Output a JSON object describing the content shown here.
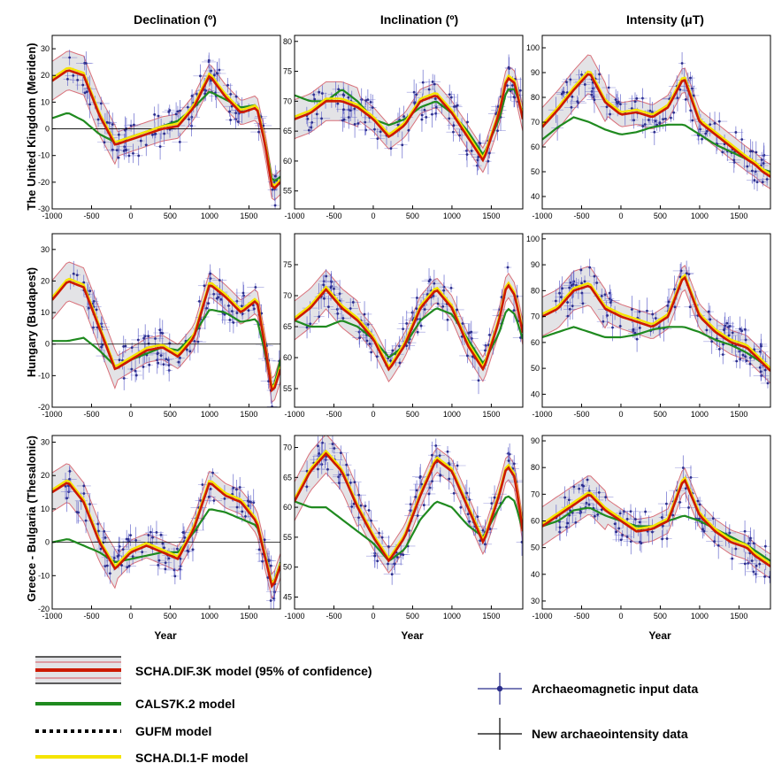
{
  "colors": {
    "model_red": "#cc1a00",
    "band_outline": "#d9707a",
    "band_fill": "#e3e3e6",
    "cals7k": "#1f8a1f",
    "gufm": "#000000",
    "schadi1f": "#f5e400",
    "data": "#2b2e8c",
    "data_bar": "#5a5cc8"
  },
  "column_titles": [
    "Declination (º)",
    "Inclination (º)",
    "Intensity (μT)"
  ],
  "row_labels": [
    "The United Kingdom (Meriden)",
    "Hungary (Budapest)",
    "Greece - Bulgaria (Thesalonic)"
  ],
  "x_axis_label": "Year",
  "legend": {
    "schadif3k": "SCHA.DIF.3K model (95% of confidence)",
    "cals7k2": "CALS7K.2 model",
    "gufm": "GUFM model",
    "schadi1f": "SCHA.DI.1-F model",
    "archaeomag": "Archaeomagnetic input data",
    "new_intensity": "New archaeointensity data"
  },
  "chart_data": [
    {
      "type": "line",
      "panel": "uk-declination",
      "xlabel": "",
      "ylabel": "",
      "xlim": [
        -1000,
        1900
      ],
      "ylim": [
        -30,
        35
      ],
      "xticks": [
        -1000,
        -500,
        0,
        500,
        1000,
        1500
      ],
      "yticks": [
        -30,
        -20,
        -10,
        0,
        10,
        20,
        30
      ],
      "zero_line": true,
      "x": [
        -1000,
        -800,
        -600,
        -400,
        -200,
        0,
        200,
        400,
        600,
        800,
        1000,
        1200,
        1400,
        1600,
        1700,
        1800,
        1900
      ],
      "series": [
        {
          "values": [
            18,
            22,
            20,
            5,
            -6,
            -4,
            -2,
            0,
            1,
            8,
            20,
            12,
            6,
            8,
            -5,
            -23,
            -20
          ]
        },
        {
          "values": [
            4,
            6,
            3,
            -2,
            -5,
            -3,
            -1,
            1,
            3,
            8,
            14,
            11,
            8,
            9,
            -4,
            -20,
            -18
          ]
        }
      ]
    },
    {
      "type": "line",
      "panel": "uk-inclination",
      "xlabel": "",
      "ylabel": "",
      "xlim": [
        -1000,
        1900
      ],
      "ylim": [
        52,
        81
      ],
      "xticks": [
        -1000,
        -500,
        0,
        500,
        1000,
        1500
      ],
      "yticks": [
        55,
        60,
        65,
        70,
        75,
        80
      ],
      "x": [
        -1000,
        -800,
        -600,
        -400,
        -200,
        0,
        200,
        400,
        600,
        800,
        1000,
        1200,
        1400,
        1600,
        1700,
        1800,
        1900
      ],
      "series": [
        {
          "values": [
            67,
            68,
            70,
            70,
            69,
            67,
            64,
            66,
            70,
            71,
            68,
            64,
            60,
            68,
            74,
            73,
            67
          ]
        },
        {
          "values": [
            71,
            70,
            70,
            72,
            70,
            67,
            66,
            67,
            69,
            70,
            68,
            65,
            61,
            67,
            72,
            72,
            68
          ]
        }
      ]
    },
    {
      "type": "line",
      "panel": "uk-intensity",
      "xlabel": "",
      "ylabel": "",
      "xlim": [
        -1000,
        1900
      ],
      "ylim": [
        35,
        105
      ],
      "xticks": [
        -1000,
        -500,
        0,
        500,
        1000,
        1500
      ],
      "yticks": [
        40,
        50,
        60,
        70,
        80,
        90,
        100
      ],
      "x": [
        -1000,
        -800,
        -600,
        -400,
        -200,
        0,
        200,
        400,
        600,
        800,
        1000,
        1200,
        1400,
        1600,
        1700,
        1800,
        1900
      ],
      "series": [
        {
          "values": [
            68,
            75,
            83,
            90,
            78,
            73,
            74,
            72,
            76,
            88,
            70,
            65,
            60,
            55,
            53,
            50,
            48
          ]
        },
        {
          "values": [
            63,
            68,
            72,
            70,
            67,
            65,
            66,
            68,
            69,
            69,
            65,
            61,
            58,
            55,
            53,
            51,
            50
          ]
        }
      ]
    },
    {
      "type": "line",
      "panel": "hungary-declination",
      "xlabel": "",
      "ylabel": "",
      "xlim": [
        -1000,
        1900
      ],
      "ylim": [
        -20,
        35
      ],
      "xticks": [
        -1000,
        -500,
        0,
        500,
        1000,
        1500
      ],
      "yticks": [
        -20,
        -10,
        0,
        10,
        20,
        30
      ],
      "zero_line": true,
      "x": [
        -1000,
        -800,
        -600,
        -400,
        -200,
        0,
        200,
        400,
        600,
        800,
        1000,
        1200,
        1400,
        1600,
        1700,
        1800,
        1900
      ],
      "series": [
        {
          "values": [
            14,
            20,
            18,
            5,
            -8,
            -5,
            -2,
            -1,
            -4,
            2,
            19,
            15,
            10,
            14,
            0,
            -16,
            -8
          ]
        },
        {
          "values": [
            1,
            1,
            2,
            -2,
            -7,
            -5,
            -3,
            -1,
            -2,
            3,
            11,
            10,
            7,
            8,
            -2,
            -15,
            -5
          ]
        }
      ]
    },
    {
      "type": "line",
      "panel": "hungary-inclination",
      "xlabel": "",
      "ylabel": "",
      "xlim": [
        -1000,
        1900
      ],
      "ylim": [
        52,
        80
      ],
      "xticks": [
        -1000,
        -500,
        0,
        500,
        1000,
        1500
      ],
      "yticks": [
        55,
        60,
        65,
        70,
        75
      ],
      "x": [
        -1000,
        -800,
        -600,
        -400,
        -200,
        0,
        200,
        400,
        600,
        800,
        1000,
        1200,
        1400,
        1600,
        1700,
        1800,
        1900
      ],
      "series": [
        {
          "values": [
            66,
            68,
            71,
            68,
            66,
            63,
            58,
            62,
            68,
            71,
            68,
            62,
            58,
            66,
            72,
            70,
            64
          ]
        },
        {
          "values": [
            66,
            65,
            65,
            66,
            65,
            63,
            60,
            62,
            66,
            68,
            67,
            63,
            59,
            64,
            68,
            67,
            63
          ]
        }
      ]
    },
    {
      "type": "line",
      "panel": "hungary-intensity",
      "xlabel": "",
      "ylabel": "",
      "xlim": [
        -1000,
        1900
      ],
      "ylim": [
        35,
        102
      ],
      "xticks": [
        -1000,
        -500,
        0,
        500,
        1000,
        1500
      ],
      "yticks": [
        40,
        50,
        60,
        70,
        80,
        90,
        100
      ],
      "x": [
        -1000,
        -800,
        -600,
        -400,
        -200,
        0,
        200,
        400,
        600,
        800,
        1000,
        1200,
        1400,
        1600,
        1700,
        1800,
        1900
      ],
      "series": [
        {
          "values": [
            70,
            73,
            80,
            82,
            73,
            70,
            68,
            66,
            70,
            86,
            70,
            64,
            60,
            58,
            55,
            52,
            49
          ]
        },
        {
          "values": [
            62,
            64,
            66,
            64,
            62,
            62,
            63,
            65,
            66,
            66,
            64,
            61,
            59,
            56,
            54,
            52,
            50
          ]
        }
      ]
    },
    {
      "type": "line",
      "panel": "greece-declination",
      "xlabel": "",
      "ylabel": "",
      "xlim": [
        -1000,
        1900
      ],
      "ylim": [
        -20,
        32
      ],
      "xticks": [
        -1000,
        -500,
        0,
        500,
        1000,
        1500
      ],
      "yticks": [
        -20,
        -10,
        0,
        10,
        20,
        30
      ],
      "zero_line": true,
      "x": [
        -1000,
        -800,
        -600,
        -400,
        -200,
        0,
        200,
        400,
        600,
        800,
        1000,
        1200,
        1400,
        1600,
        1700,
        1800,
        1900
      ],
      "series": [
        {
          "values": [
            15,
            18,
            12,
            0,
            -8,
            -3,
            -1,
            -3,
            -5,
            4,
            18,
            14,
            12,
            6,
            -4,
            -14,
            -7
          ]
        },
        {
          "values": [
            0,
            1,
            -1,
            -3,
            -6,
            -5,
            -4,
            -3,
            -3,
            3,
            10,
            9,
            7,
            5,
            -3,
            -13,
            -6
          ]
        }
      ]
    },
    {
      "type": "line",
      "panel": "greece-inclination",
      "xlabel": "",
      "ylabel": "",
      "xlim": [
        -1000,
        1900
      ],
      "ylim": [
        43,
        72
      ],
      "xticks": [
        -1000,
        -500,
        0,
        500,
        1000,
        1500
      ],
      "yticks": [
        45,
        50,
        55,
        60,
        65,
        70
      ],
      "x": [
        -1000,
        -800,
        -600,
        -400,
        -200,
        0,
        200,
        400,
        600,
        800,
        1000,
        1200,
        1400,
        1600,
        1700,
        1800,
        1900
      ],
      "series": [
        {
          "values": [
            61,
            66,
            69,
            66,
            60,
            55,
            51,
            55,
            62,
            68,
            66,
            60,
            54,
            62,
            67,
            65,
            56
          ]
        },
        {
          "values": [
            61,
            60,
            60,
            58,
            56,
            54,
            51,
            53,
            58,
            61,
            60,
            57,
            55,
            60,
            62,
            61,
            56
          ]
        }
      ]
    },
    {
      "type": "line",
      "panel": "greece-intensity",
      "xlabel": "",
      "ylabel": "",
      "xlim": [
        -1000,
        1900
      ],
      "ylim": [
        27,
        92
      ],
      "xticks": [
        -1000,
        -500,
        0,
        500,
        1000,
        1500
      ],
      "yticks": [
        30,
        40,
        50,
        60,
        70,
        80,
        90
      ],
      "x": [
        -1000,
        -800,
        -600,
        -400,
        -200,
        0,
        200,
        400,
        600,
        800,
        1000,
        1200,
        1400,
        1600,
        1700,
        1800,
        1900
      ],
      "series": [
        {
          "values": [
            58,
            62,
            66,
            70,
            64,
            60,
            56,
            57,
            60,
            76,
            62,
            56,
            52,
            50,
            47,
            45,
            43
          ]
        },
        {
          "values": [
            58,
            60,
            64,
            65,
            62,
            60,
            58,
            58,
            60,
            62,
            60,
            57,
            54,
            51,
            49,
            47,
            45
          ]
        }
      ]
    }
  ]
}
